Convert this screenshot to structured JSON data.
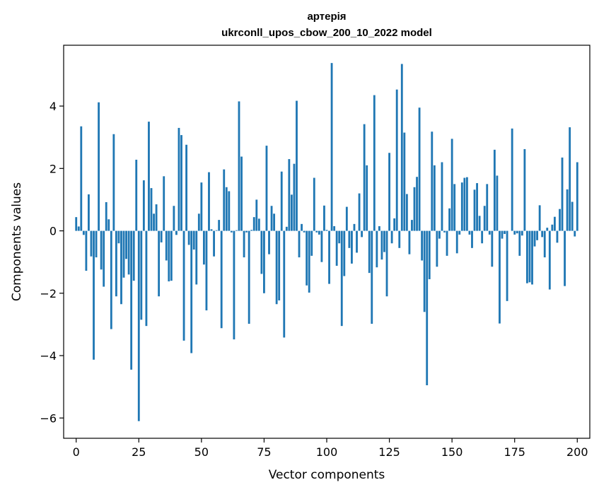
{
  "chart_data": {
    "type": "bar",
    "title": "артерія",
    "subtitle": "ukrconll_upos_cbow_200_10_2022 model",
    "xlabel": "Vector components",
    "ylabel": "Components values",
    "xlim": [
      -5,
      205
    ],
    "ylim": [
      -6.65,
      5.95
    ],
    "xticks": [
      0,
      25,
      50,
      75,
      100,
      125,
      150,
      175,
      200
    ],
    "yticks": [
      -6,
      -4,
      -2,
      0,
      2,
      4
    ],
    "ytick_labels": [
      "−6",
      "−4",
      "−2",
      "0",
      "2",
      "4"
    ],
    "bar_color": "#1f77b4",
    "grid": false,
    "legend": "none",
    "values": [
      0.44,
      0.14,
      3.35,
      -0.13,
      -1.28,
      1.17,
      -0.82,
      -4.13,
      -0.85,
      4.12,
      -1.24,
      -1.79,
      0.92,
      0.37,
      -3.15,
      3.1,
      -2.1,
      -0.4,
      -2.35,
      -1.5,
      -0.9,
      -1.4,
      -4.45,
      -1.6,
      2.28,
      -6.1,
      -2.85,
      1.62,
      -3.05,
      3.5,
      1.37,
      0.55,
      0.85,
      -2.1,
      -0.37,
      1.75,
      -0.95,
      -1.62,
      -1.6,
      0.8,
      -0.13,
      3.3,
      3.07,
      -3.52,
      2.76,
      -0.45,
      -3.92,
      -0.6,
      -1.72,
      0.55,
      1.55,
      -1.08,
      -2.55,
      1.88,
      0.05,
      -0.82,
      0.02,
      0.35,
      -3.12,
      1.97,
      1.4,
      1.27,
      -0.05,
      -3.48,
      0.02,
      4.15,
      2.38,
      -0.85,
      -0.05,
      -2.98,
      0.03,
      0.44,
      1.0,
      0.39,
      -1.38,
      -2.0,
      2.73,
      -0.75,
      0.8,
      0.55,
      -2.35,
      -2.23,
      1.9,
      -3.42,
      0.13,
      2.3,
      1.16,
      2.15,
      4.17,
      -0.85,
      0.22,
      -0.05,
      -1.75,
      -1.98,
      -0.8,
      1.7,
      -0.05,
      -0.12,
      -1.0,
      0.81,
      0.03,
      -1.7,
      5.38,
      0.15,
      -1.12,
      -0.4,
      -3.05,
      -1.45,
      0.77,
      -0.55,
      -1.05,
      0.22,
      -0.7,
      1.2,
      -0.2,
      3.42,
      2.1,
      -1.35,
      -2.98,
      4.35,
      -1.17,
      0.15,
      -0.92,
      -0.68,
      -2.1,
      2.5,
      -0.4,
      0.4,
      4.53,
      -0.55,
      5.35,
      3.15,
      1.18,
      -0.75,
      0.35,
      1.4,
      1.73,
      3.95,
      -0.95,
      -2.6,
      -4.95,
      -1.55,
      3.18,
      2.1,
      -1.15,
      -0.25,
      2.2,
      -0.05,
      -0.8,
      0.72,
      2.95,
      1.5,
      -0.72,
      -0.12,
      1.55,
      1.7,
      1.72,
      -0.12,
      -0.55,
      1.32,
      1.53,
      0.48,
      -0.4,
      0.8,
      1.5,
      -0.12,
      -1.15,
      2.6,
      1.77,
      -2.97,
      -0.25,
      -0.1,
      -2.25,
      0.0,
      3.28,
      -0.12,
      -0.08,
      -0.8,
      -0.15,
      2.62,
      -1.68,
      -1.65,
      -1.72,
      -0.5,
      -0.3,
      0.82,
      -0.2,
      -0.85,
      0.1,
      -1.88,
      0.2,
      0.45,
      -0.38,
      0.7,
      2.35,
      -1.77,
      1.33,
      3.32,
      0.93,
      -0.18,
      2.2
    ]
  }
}
